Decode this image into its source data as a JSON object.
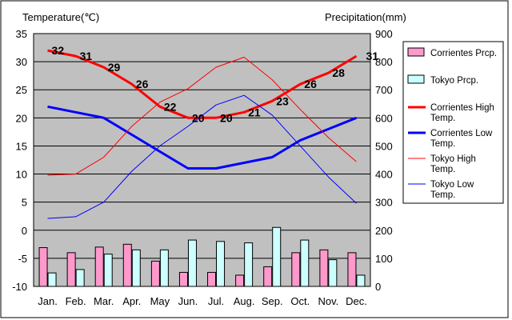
{
  "chart_data": {
    "type": "bar+line",
    "left_axis_title": "Temperature(℃)",
    "right_axis_title": "Precipitation(mm)",
    "categories": [
      "Jan.",
      "Feb.",
      "Mar.",
      "Apr.",
      "May",
      "Jun.",
      "Jul.",
      "Aug.",
      "Sep.",
      "Oct.",
      "Nov.",
      "Dec."
    ],
    "ylim_left": [
      -10,
      35
    ],
    "yticks_left": [
      -10,
      -5,
      0,
      5,
      10,
      15,
      20,
      25,
      30,
      35
    ],
    "ylim_right": [
      0,
      900
    ],
    "yticks_right": [
      0,
      100,
      200,
      300,
      400,
      500,
      600,
      700,
      800,
      900
    ],
    "grid": true,
    "legend_position": "right",
    "bar_series": [
      {
        "name": "Corrientes Prcp.",
        "color": "#ff99cc",
        "axis": "right",
        "values": [
          138,
          120,
          140,
          150,
          90,
          50,
          50,
          40,
          70,
          120,
          130,
          120
        ]
      },
      {
        "name": "Tokyo Prcp.",
        "color": "#ccffff",
        "axis": "right",
        "values": [
          48,
          60,
          115,
          130,
          130,
          165,
          160,
          155,
          210,
          165,
          95,
          40
        ]
      }
    ],
    "line_series": [
      {
        "name": "Corrientes High Temp.",
        "color": "#ff0000",
        "width": "thick",
        "axis": "left",
        "values": [
          32,
          31,
          29,
          26,
          22,
          20,
          20,
          21,
          23,
          26,
          28,
          31
        ],
        "labels": [
          "32",
          "31",
          "29",
          "26",
          "22",
          "20",
          "20",
          "21",
          "23",
          "26",
          "28",
          "31"
        ]
      },
      {
        "name": "Corrientes Low Temp.",
        "color": "#0000ff",
        "width": "thick",
        "axis": "left",
        "values": [
          22,
          21,
          20,
          17,
          14,
          11,
          11,
          12,
          13,
          16,
          18,
          20
        ]
      },
      {
        "name": "Tokyo High Temp.",
        "color": "#ff0000",
        "width": "thin",
        "axis": "left",
        "values": [
          9.8,
          10,
          13,
          18.5,
          22.8,
          25.2,
          29,
          30.8,
          26.8,
          21.5,
          16.5,
          12.2
        ]
      },
      {
        "name": "Tokyo Low Temp.",
        "color": "#0000ff",
        "width": "thin",
        "axis": "left",
        "values": [
          2.1,
          2.4,
          5,
          10.5,
          15,
          18.5,
          22.3,
          24,
          20.5,
          15,
          9.5,
          4.8
        ]
      }
    ]
  }
}
